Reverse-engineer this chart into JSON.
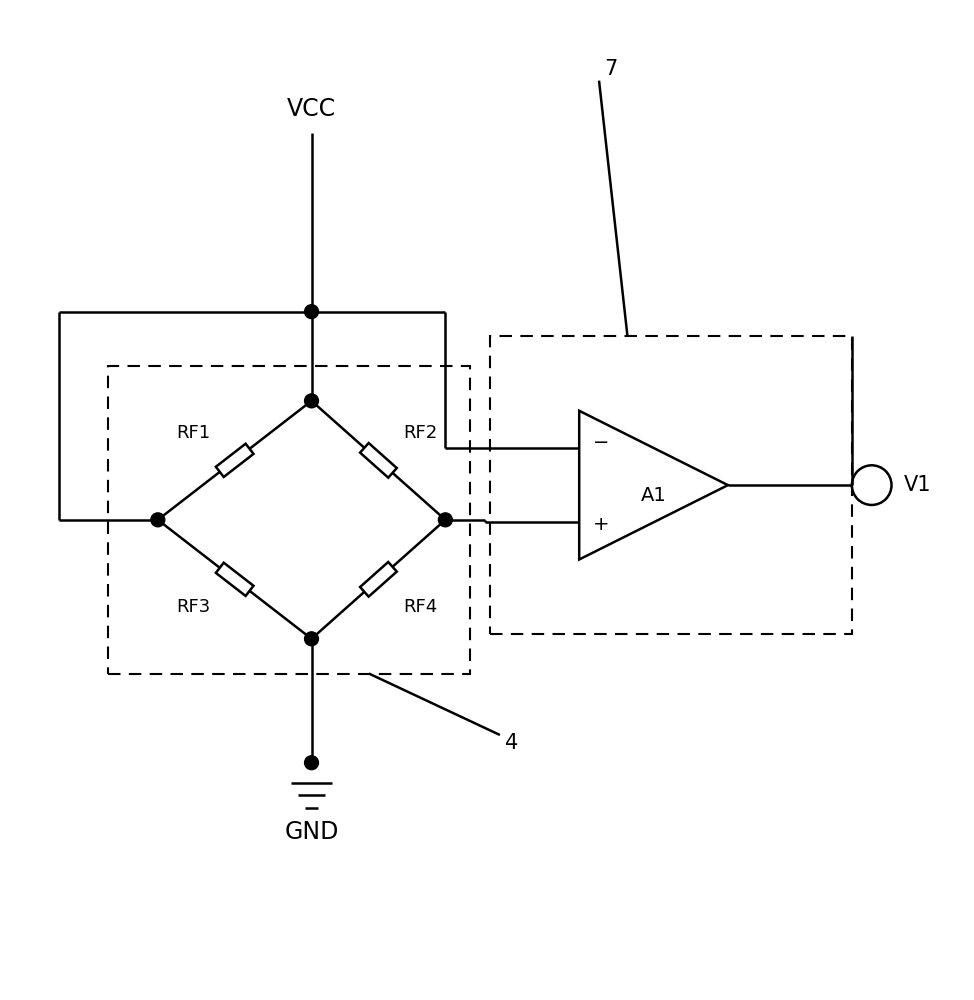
{
  "bg_color": "#ffffff",
  "line_color": "#000000",
  "fig_width": 9.74,
  "fig_height": 10.0,
  "vcc_label": "VCC",
  "gnd_label": "GND",
  "v1_label": "V1",
  "label_7": "7",
  "label_4": "4",
  "rf1_label": "RF1",
  "rf2_label": "RF2",
  "rf3_label": "RF3",
  "rf4_label": "RF4",
  "a1_label": "A1",
  "minus_label": "−",
  "plus_label": "+"
}
